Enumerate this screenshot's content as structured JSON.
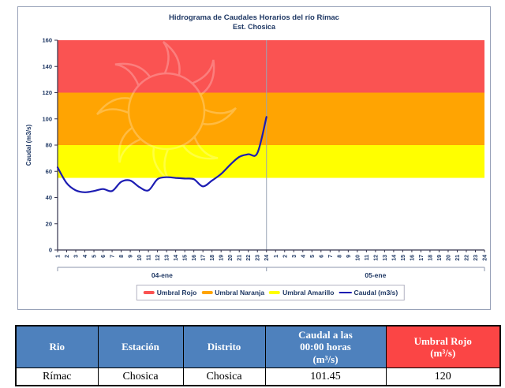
{
  "chart": {
    "text_color": "#1f3864",
    "panel_border_color": "#98a2b8"
  },
  "chart_data": {
    "type": "line",
    "title": "Hidrograma de Caudales Horarios del río Rímac",
    "subtitle": "Est. Chosica",
    "ylabel": "Caudal (m3/s)",
    "ylim": [
      0,
      160
    ],
    "ytick_step": 20,
    "grid": false,
    "legend_position": "bottom",
    "hour_labels": [
      1,
      2,
      3,
      4,
      5,
      6,
      7,
      8,
      9,
      10,
      11,
      12,
      13,
      14,
      15,
      16,
      17,
      18,
      19,
      20,
      21,
      22,
      23,
      24
    ],
    "day_groups": [
      {
        "label": "04-ene"
      },
      {
        "label": "05-ene"
      }
    ],
    "bands": [
      {
        "name": "Umbral Rojo",
        "from": 120,
        "to": 160,
        "color": "#fa5352"
      },
      {
        "name": "Umbral Naranja",
        "from": 80,
        "to": 120,
        "color": "#ffa402"
      },
      {
        "name": "Umbral Amarillo",
        "from": 55,
        "to": 80,
        "color": "#ffff00"
      }
    ],
    "series": [
      {
        "name": "Caudal (m3/s)",
        "day": "04-ene",
        "color": "#1c1cb2",
        "values": [
          63,
          51,
          45.5,
          44,
          45,
          46.5,
          45,
          52,
          53,
          48,
          45.5,
          54,
          55.5,
          55,
          54.5,
          54,
          48.5,
          53,
          58,
          65,
          71,
          73,
          74,
          101.45
        ]
      }
    ],
    "legend": [
      {
        "label": "Umbral Rojo",
        "color": "#fa5352",
        "type": "band"
      },
      {
        "label": "Umbral Naranja",
        "color": "#ffa402",
        "type": "band"
      },
      {
        "label": "Umbral Amarillo",
        "color": "#ffff00",
        "type": "band"
      },
      {
        "label": "Caudal (m3/s)",
        "color": "#1c1cb2",
        "type": "line"
      }
    ]
  },
  "table": {
    "header_bg": "#4e81bd",
    "header_alert_bg": "#fb4545",
    "headers": [
      "Rio",
      "Estación",
      "Distrito",
      "Caudal a las\n00:00 horas\n(m³/s)",
      "Umbral Rojo\n(m³/s)"
    ],
    "row": [
      "Rímac",
      "Chosica",
      "Chosica",
      "101.45",
      "120"
    ]
  }
}
